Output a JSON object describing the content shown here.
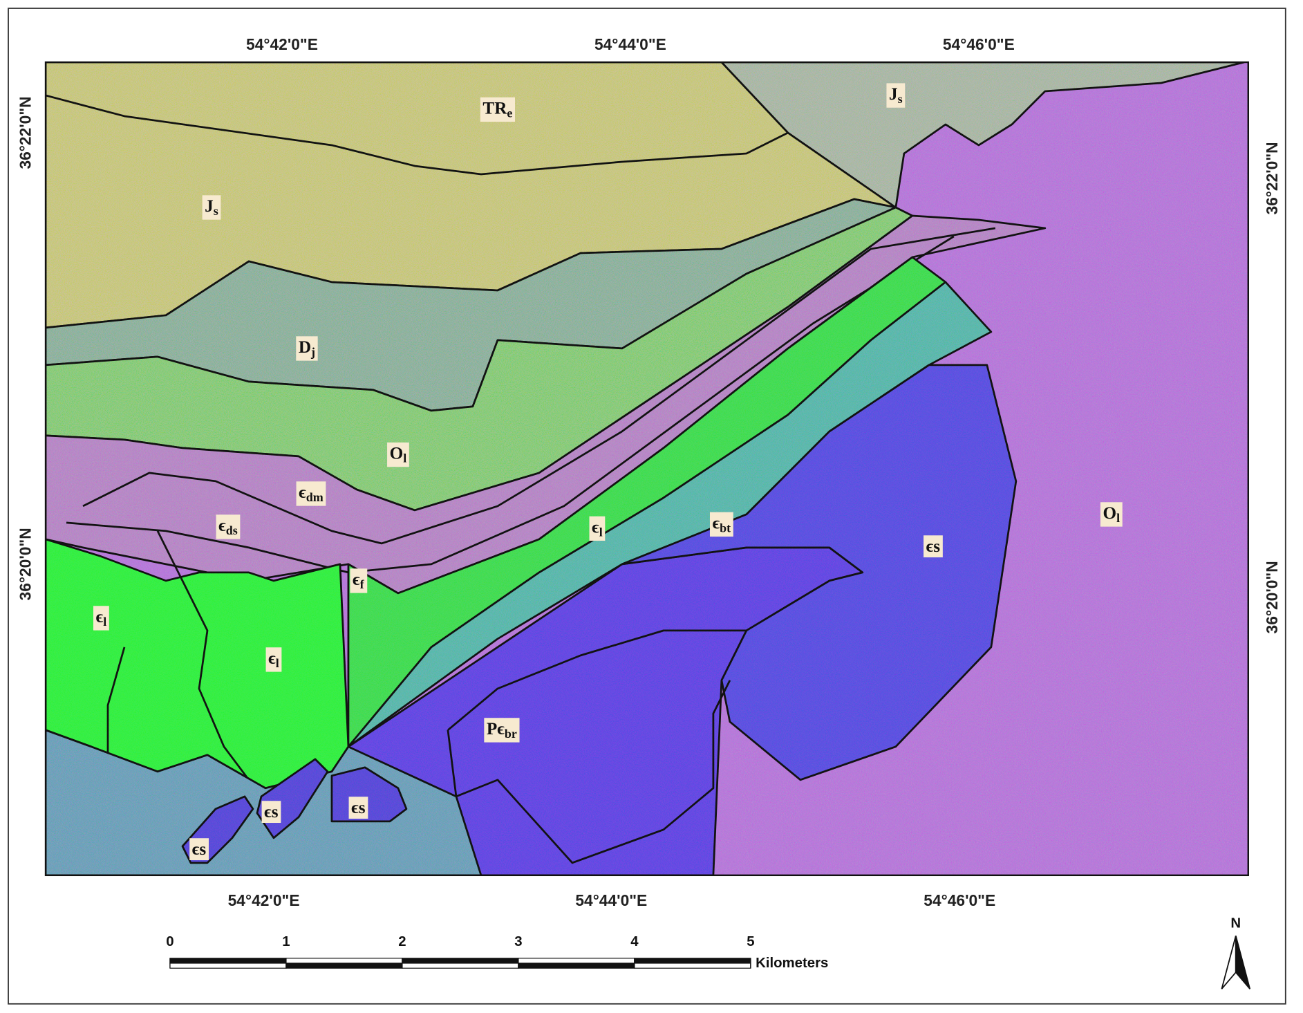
{
  "map": {
    "top_longitudes": [
      "54°42'0\"E",
      "54°44'0\"E",
      "54°46'0\"E"
    ],
    "bottom_longitudes": [
      "54°42'0\"E",
      "54°44'0\"E",
      "54°46'0\"E"
    ],
    "left_latitudes": [
      "36°22'0\"N",
      "36°20'0\"N"
    ],
    "right_latitudes": [
      "36°22'0\"N",
      "36°20'0\"N"
    ],
    "units": [
      {
        "base": "TR",
        "sub": "e"
      },
      {
        "base": "J",
        "sub": "s"
      },
      {
        "base": "J",
        "sub": "s"
      },
      {
        "base": "D",
        "sub": "j"
      },
      {
        "base": "O",
        "sub": "l"
      },
      {
        "base": "ϵ",
        "sub": "dm"
      },
      {
        "base": "ϵ",
        "sub": "ds"
      },
      {
        "base": "ϵ",
        "sub": "l"
      },
      {
        "base": "ϵ",
        "sub": "bt"
      },
      {
        "base": "ϵs"
      },
      {
        "base": "O",
        "sub": "l"
      },
      {
        "base": "ϵ",
        "sub": "f"
      },
      {
        "base": "ϵ",
        "sub": "l"
      },
      {
        "base": "ϵ",
        "sub": "l"
      },
      {
        "base": "Pϵ",
        "sub": "br"
      },
      {
        "base": "ϵs"
      },
      {
        "base": "ϵs"
      },
      {
        "base": "ϵs"
      }
    ],
    "scale_bar": {
      "ticks": [
        0,
        1,
        2,
        3,
        4,
        5
      ],
      "unit": "Kilometers"
    },
    "north": "N"
  }
}
